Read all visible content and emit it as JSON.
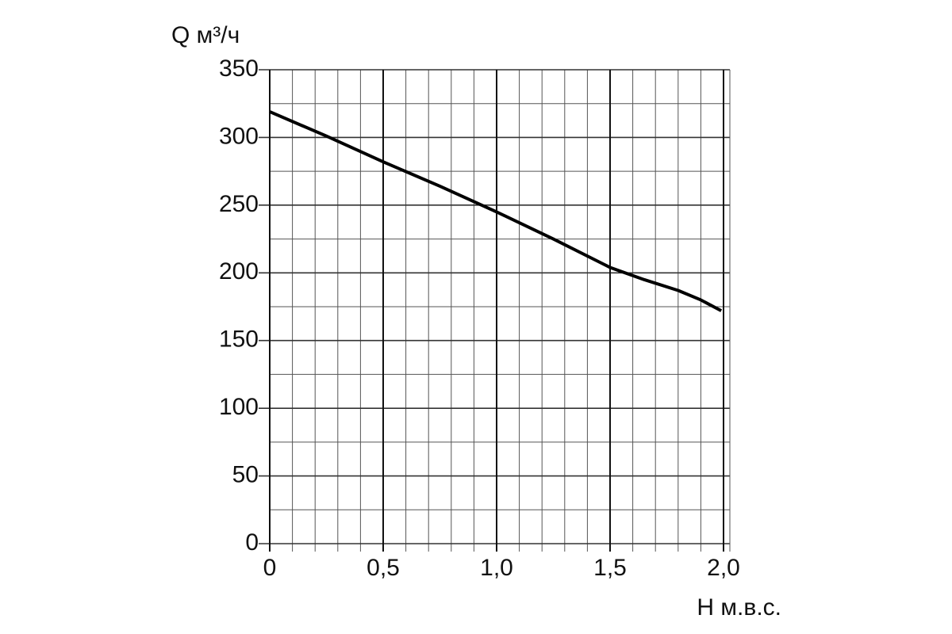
{
  "chart_data": {
    "type": "line",
    "y_label": "Q м³/ч",
    "x_label": "H м.в.с.",
    "x": [
      0,
      0.25,
      0.5,
      0.75,
      1.0,
      1.25,
      1.5,
      1.65,
      1.8,
      1.9,
      1.99
    ],
    "series": [
      {
        "color": "#000000",
        "values": [
          319,
          301,
          282,
          264,
          245,
          225,
          204,
          195,
          187,
          180,
          172
        ]
      }
    ],
    "xlim": [
      0,
      2.0
    ],
    "ylim": [
      0,
      350
    ],
    "xticks": [
      0,
      {
        "value": 0.5,
        "label": "0,5"
      },
      {
        "value": 1.0,
        "label": "1,0"
      },
      {
        "value": 1.5,
        "label": "1,5"
      },
      {
        "value": 2.0,
        "label": "2,0"
      }
    ],
    "yticks": [
      0,
      50,
      100,
      150,
      200,
      250,
      300,
      350
    ],
    "xminor_ticks": [
      0.1,
      0.2,
      0.3,
      0.4,
      0.6,
      0.7,
      0.8,
      0.9,
      1.1,
      1.2,
      1.3,
      1.4,
      1.6,
      1.7,
      1.8,
      1.9
    ],
    "yminor_ticks": [
      25,
      75,
      125,
      175,
      225,
      275,
      325
    ],
    "grid": true
  }
}
